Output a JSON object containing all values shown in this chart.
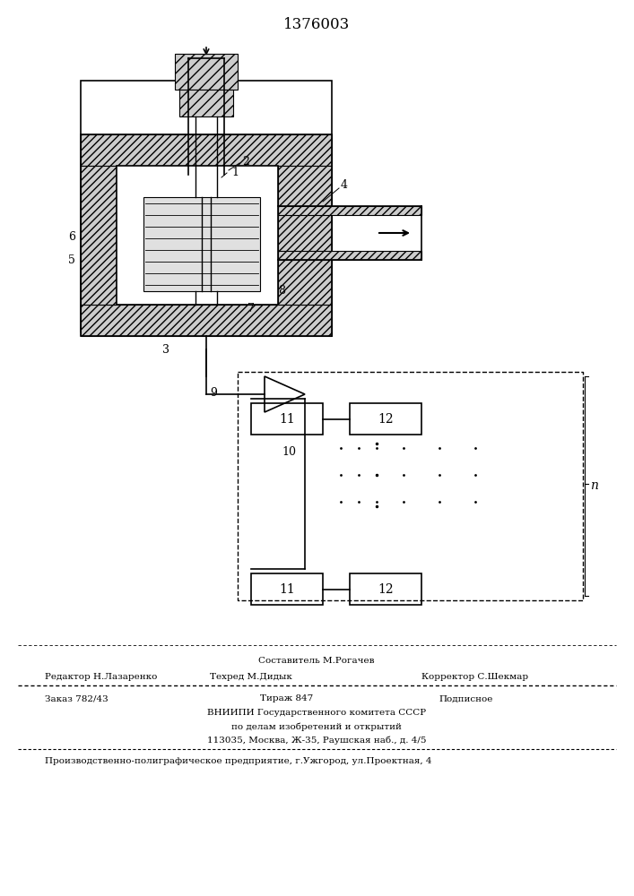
{
  "title": "1376003",
  "bg_color": "#ffffff",
  "footer_line1": "Составитель М.Рогачев",
  "footer_line2_left": "Редактор Н.Лазаренко",
  "footer_line2_mid": "Техред М.Дидык",
  "footer_line2_right": "Корректор С.Шекмар",
  "footer_line3_left": "Заказ 782/43",
  "footer_line3_mid": "Тираж 847",
  "footer_line3_right": "Подписное",
  "footer_line4": "ВНИИПИ Государственного комитета СССР",
  "footer_line5": "по делам изобретений и открытий",
  "footer_line6": "113035, Москва, Ж-35, Раушская наб., д. 4/5",
  "footer_line7": "Производственно-полиграфическое предприятие, г.Ужгород, ул.Проектная, 4"
}
